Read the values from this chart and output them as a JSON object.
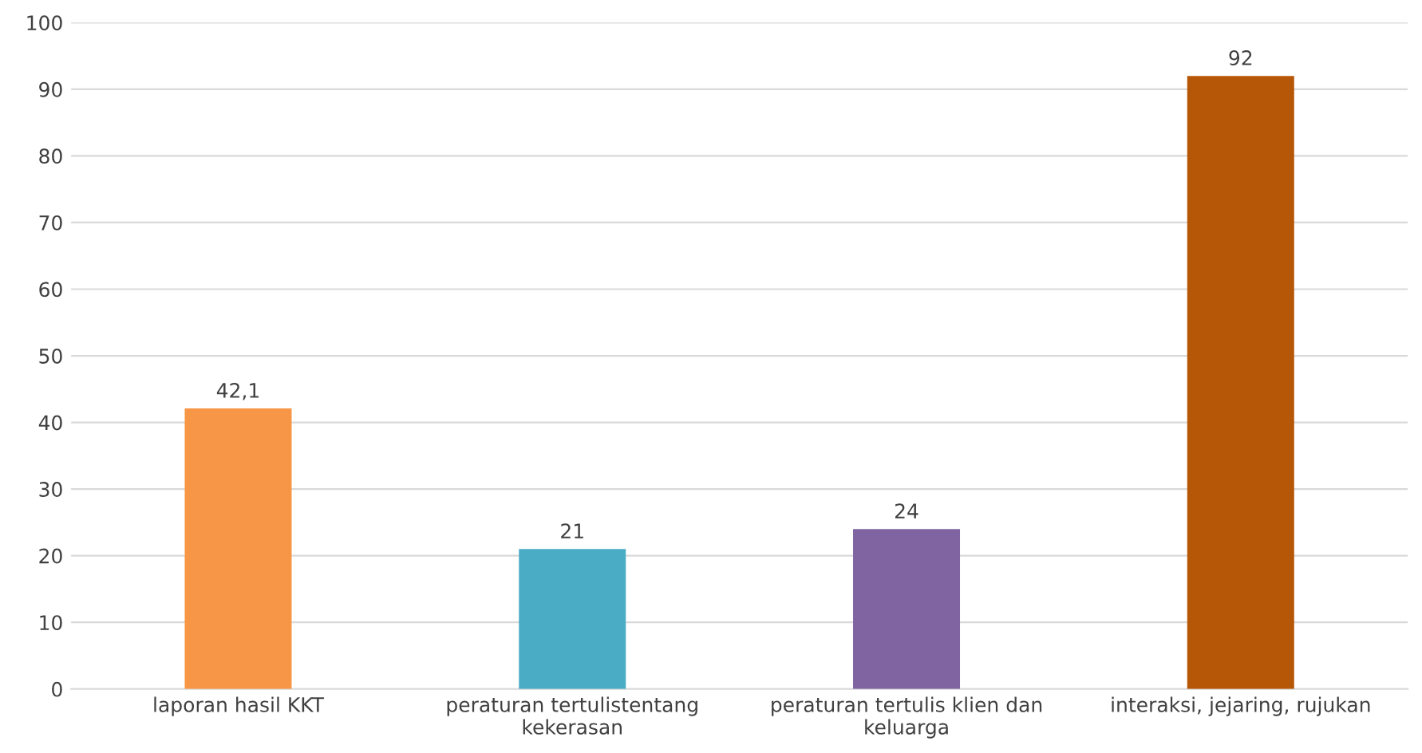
{
  "chart_data": {
    "type": "bar",
    "categories": [
      "laporan hasil KKT",
      "peraturan tertulistentang kekerasan",
      "peraturan tertulis klien dan keluarga",
      "interaksi, jejaring, rujukan"
    ],
    "values": [
      42.1,
      21,
      24,
      92
    ],
    "colors": [
      "#f79646",
      "#4bacc6",
      "#8064a2",
      "#b65708"
    ],
    "value_labels": [
      "42,1",
      "21",
      "24",
      "92"
    ],
    "ylim": [
      0,
      100
    ],
    "yticks": [
      0,
      10,
      20,
      30,
      40,
      50,
      60,
      70,
      80,
      90,
      100
    ],
    "grid": "y",
    "legend": false
  }
}
